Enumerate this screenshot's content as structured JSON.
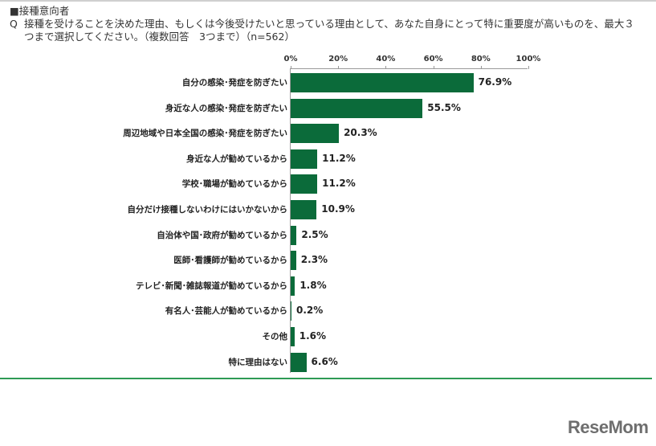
{
  "header": {
    "section_label": "■接種意向者",
    "question_prefix": "Q",
    "question_text": "接種を受けることを決めた理由、もしくは今後受けたいと思っている理由として、あなた自身にとって特に重要度が高いものを、最大３つまで選択してください。（複数回答　3つまで）（n=562）"
  },
  "axis": {
    "ticks": [
      "0%",
      "20%",
      "40%",
      "60%",
      "80%",
      "100%"
    ]
  },
  "bars": [
    {
      "label": "自分の感染･発症を防ぎたい",
      "value": 76.9,
      "display": "76.9%"
    },
    {
      "label": "身近な人の感染･発症を防ぎたい",
      "value": 55.5,
      "display": "55.5%"
    },
    {
      "label": "周辺地域や日本全国の感染･発症を防ぎたい",
      "value": 20.3,
      "display": "20.3%"
    },
    {
      "label": "身近な人が勧めているから",
      "value": 11.2,
      "display": "11.2%"
    },
    {
      "label": "学校･職場が勧めているから",
      "value": 11.2,
      "display": "11.2%"
    },
    {
      "label": "自分だけ接種しないわけにはいかないから",
      "value": 10.9,
      "display": "10.9%"
    },
    {
      "label": "自治体や国･政府が勧めているから",
      "value": 2.5,
      "display": "2.5%"
    },
    {
      "label": "医師･看護師が勧めているから",
      "value": 2.3,
      "display": "2.3%"
    },
    {
      "label": "テレビ･新聞･雑誌報道が勧めているから",
      "value": 1.8,
      "display": "1.8%"
    },
    {
      "label": "有名人･芸能人が勧めているから",
      "value": 0.2,
      "display": "0.2%"
    },
    {
      "label": "その他",
      "value": 1.6,
      "display": "1.6%"
    },
    {
      "label": "特に理由はない",
      "value": 6.6,
      "display": "6.6%"
    }
  ],
  "colors": {
    "bar": "#0b6b3a",
    "divider": "#2e9a55"
  },
  "logo": {
    "text": "ReseMom"
  },
  "chart_data": {
    "type": "bar",
    "orientation": "horizontal",
    "title": "■接種意向者",
    "subtitle": "Q 接種を受けることを決めた理由、もしくは今後受けたいと思っている理由として、あなた自身にとって特に重要度が高いものを、最大３つまで選択してください。（複数回答　3つまで）（n=562）",
    "categories": [
      "自分の感染･発症を防ぎたい",
      "身近な人の感染･発症を防ぎたい",
      "周辺地域や日本全国の感染･発症を防ぎたい",
      "身近な人が勧めているから",
      "学校･職場が勧めているから",
      "自分だけ接種しないわけにはいかないから",
      "自治体や国･政府が勧めているから",
      "医師･看護師が勧めているから",
      "テレビ･新聞･雑誌報道が勧めているから",
      "有名人･芸能人が勧めているから",
      "その他",
      "特に理由はない"
    ],
    "values": [
      76.9,
      55.5,
      20.3,
      11.2,
      11.2,
      10.9,
      2.5,
      2.3,
      1.8,
      0.2,
      1.6,
      6.6
    ],
    "xlabel": "",
    "ylabel": "",
    "xlim": [
      0,
      100
    ],
    "x_ticks": [
      "0%",
      "20%",
      "40%",
      "60%",
      "80%",
      "100%"
    ],
    "axis_position": "top",
    "grid": false,
    "legend": null,
    "data_labels": true,
    "n": 562
  }
}
